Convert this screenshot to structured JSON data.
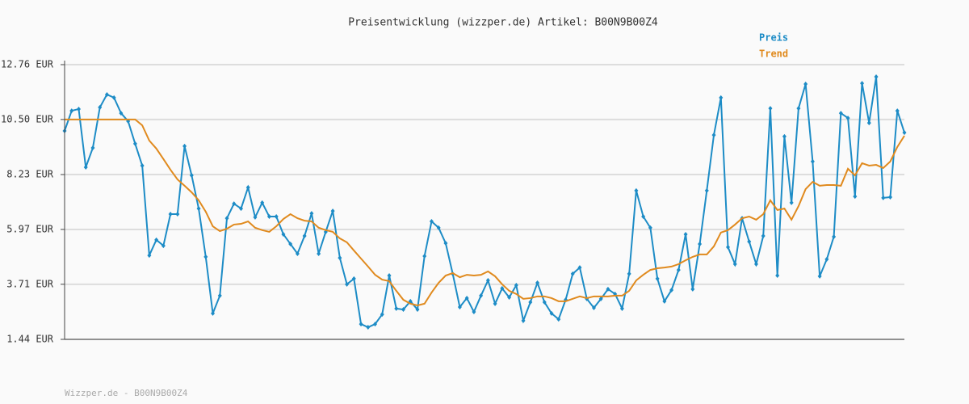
{
  "chart_data": {
    "type": "line",
    "title": "Preisentwicklung (wizzper.de) Artikel: B00N9B00Z4",
    "footer": "Wizzper.de - B00N9B00Z4",
    "legend": "top-right",
    "grid": true,
    "ylim": [
      1.44,
      12.76
    ],
    "yticks": [
      {
        "value": 1.44,
        "label": "1.44 EUR"
      },
      {
        "value": 3.71,
        "label": "3.71 EUR"
      },
      {
        "value": 5.97,
        "label": "5.97 EUR"
      },
      {
        "value": 8.23,
        "label": "8.23 EUR"
      },
      {
        "value": 10.5,
        "label": "10.50 EUR"
      },
      {
        "value": 12.76,
        "label": "12.76 EUR"
      }
    ],
    "series": [
      {
        "name": "Preis",
        "color": "#1d8cc6",
        "markers": true,
        "values": [
          10.03,
          10.86,
          10.93,
          8.53,
          9.33,
          11.0,
          11.53,
          11.4,
          10.76,
          10.43,
          9.5,
          8.6,
          4.9,
          5.54,
          5.3,
          6.6,
          6.6,
          9.4,
          8.2,
          6.83,
          4.84,
          2.51,
          3.24,
          6.43,
          7.03,
          6.83,
          7.7,
          6.47,
          7.07,
          6.5,
          6.5,
          5.77,
          5.37,
          4.97,
          5.7,
          6.63,
          4.97,
          5.87,
          6.73,
          4.8,
          3.71,
          3.94,
          2.07,
          1.94,
          2.07,
          2.47,
          4.07,
          2.71,
          2.67,
          3.01,
          2.67,
          4.87,
          6.3,
          6.04,
          5.4,
          4.14,
          2.77,
          3.14,
          2.57,
          3.24,
          3.87,
          2.91,
          3.54,
          3.17,
          3.67,
          2.21,
          2.97,
          3.77,
          2.97,
          2.51,
          2.27,
          3.07,
          4.14,
          4.4,
          3.11,
          2.74,
          3.11,
          3.51,
          3.31,
          2.71,
          4.14,
          7.57,
          6.5,
          6.04,
          3.94,
          3.01,
          3.47,
          4.3,
          5.77,
          3.51,
          5.37,
          7.57,
          9.86,
          11.4,
          5.24,
          4.54,
          6.43,
          5.47,
          4.54,
          5.7,
          10.96,
          4.07,
          9.8,
          7.07,
          10.96,
          11.96,
          8.77,
          4.04,
          4.74,
          5.67,
          10.76,
          10.56,
          7.33,
          11.99,
          10.36,
          12.26,
          7.27,
          7.3,
          10.86,
          9.96
        ]
      },
      {
        "name": "Trend",
        "color": "#e08a1e",
        "markers": false,
        "values": [
          10.5,
          10.5,
          10.5,
          10.5,
          10.5,
          10.5,
          10.5,
          10.5,
          10.5,
          10.5,
          10.5,
          10.26,
          9.63,
          9.3,
          8.87,
          8.43,
          8.03,
          7.77,
          7.5,
          7.17,
          6.7,
          6.1,
          5.9,
          6.0,
          6.17,
          6.2,
          6.3,
          6.04,
          5.94,
          5.87,
          6.1,
          6.4,
          6.6,
          6.43,
          6.33,
          6.3,
          6.04,
          5.94,
          5.87,
          5.6,
          5.44,
          5.1,
          4.77,
          4.44,
          4.1,
          3.9,
          3.84,
          3.44,
          3.07,
          2.91,
          2.84,
          2.91,
          3.37,
          3.77,
          4.07,
          4.17,
          4.0,
          4.1,
          4.07,
          4.1,
          4.24,
          4.04,
          3.71,
          3.44,
          3.31,
          3.11,
          3.14,
          3.21,
          3.21,
          3.14,
          3.01,
          3.01,
          3.11,
          3.21,
          3.14,
          3.21,
          3.21,
          3.21,
          3.24,
          3.24,
          3.44,
          3.87,
          4.1,
          4.3,
          4.37,
          4.4,
          4.44,
          4.54,
          4.7,
          4.84,
          4.94,
          4.94,
          5.27,
          5.84,
          5.94,
          6.17,
          6.43,
          6.5,
          6.37,
          6.6,
          7.17,
          6.77,
          6.83,
          6.37,
          6.93,
          7.63,
          7.93,
          7.77,
          7.8,
          7.8,
          7.77,
          8.47,
          8.2,
          8.7,
          8.6,
          8.63,
          8.5,
          8.77,
          9.37,
          9.83
        ]
      }
    ]
  }
}
